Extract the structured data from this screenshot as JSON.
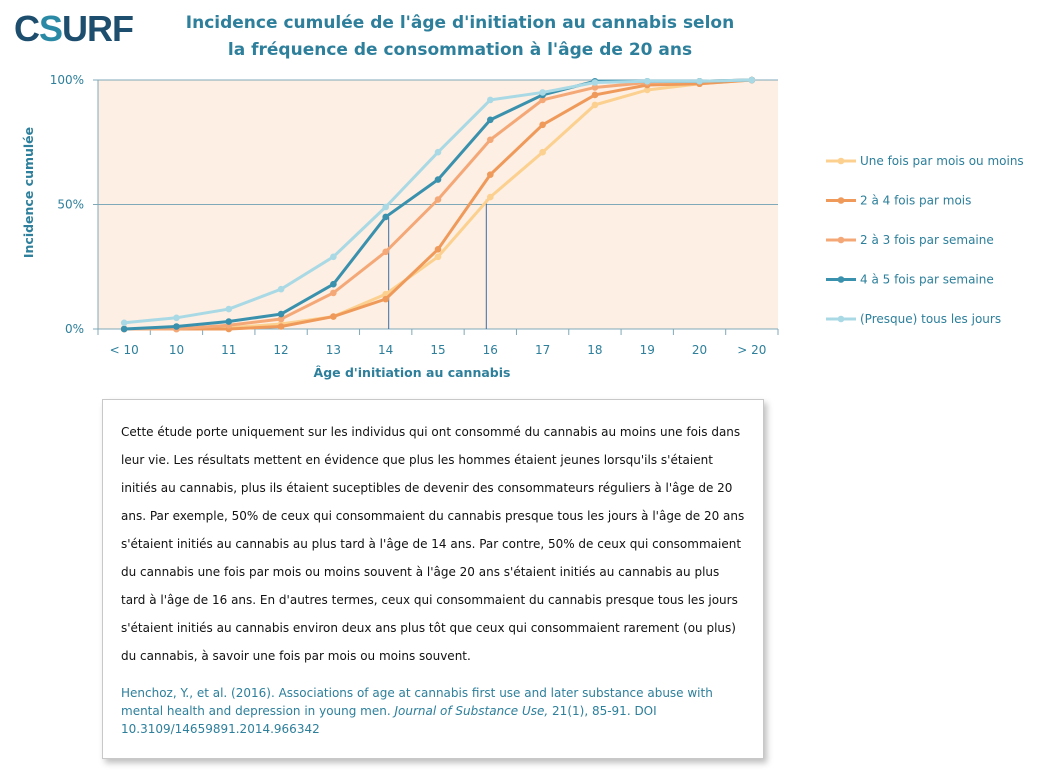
{
  "logo": {
    "part1": "C",
    "part2": "S",
    "part3": "URF"
  },
  "title": {
    "line1": "Incidence cumulée de l'âge d'initiation au cannabis selon",
    "line2": "la fréquence de consommation à l'âge de 20 ans"
  },
  "colors": {
    "plot_bg": "#fdefe3",
    "axis": "#7fa8b8",
    "text": "#2d7f9b"
  },
  "chart_data": {
    "type": "line",
    "categories": [
      "< 10",
      "10",
      "11",
      "12",
      "13",
      "14",
      "15",
      "16",
      "17",
      "18",
      "19",
      "20",
      "> 20"
    ],
    "ylim": [
      0,
      100
    ],
    "yticks": [
      "0%",
      "50%",
      "100%"
    ],
    "xlabel": "Âge d'initiation au cannabis",
    "ylabel": "Incidence cumulée",
    "legend_position": "right",
    "grid": "horizontal at 50%",
    "reference_lines": [
      {
        "series": "4 à 5 fois par semaine",
        "x": "14",
        "y": 50
      },
      {
        "series": "Une fois par mois ou moins",
        "x": "16",
        "y": 50
      }
    ],
    "series": [
      {
        "name": "Une fois par mois ou moins",
        "color": "#fcd08f",
        "values": [
          0,
          0,
          0.5,
          2,
          5,
          14,
          29,
          53,
          71,
          90,
          96,
          98.5,
          100
        ]
      },
      {
        "name": "2 à 4 fois par mois",
        "color": "#ef9a5a",
        "values": [
          0,
          0,
          0,
          1,
          5,
          12,
          32,
          62,
          82,
          94,
          98,
          98.5,
          100
        ]
      },
      {
        "name": "2 à 3 fois par semaine",
        "color": "#f5a877",
        "values": [
          0,
          0,
          1.5,
          4,
          14.5,
          31,
          52,
          76,
          92,
          97,
          99,
          99.5,
          100
        ]
      },
      {
        "name": "4 à 5 fois par semaine",
        "color": "#3a91ad",
        "values": [
          0,
          1,
          3,
          6,
          18,
          45,
          60,
          84,
          94,
          99.5,
          99.5,
          99.5,
          100
        ]
      },
      {
        "name": "(Presque) tous les jours",
        "color": "#a9d9e5",
        "values": [
          2.5,
          4.5,
          8,
          16,
          29,
          49,
          71,
          92,
          95,
          99,
          99.5,
          99.5,
          100
        ]
      }
    ]
  },
  "description": {
    "text": "Cette étude porte uniquement sur les individus qui ont consommé du cannabis au moins une fois dans leur vie. Les résultats mettent en évidence que plus les hommes étaient jeunes lorsqu'ils s'étaient initiés au cannabis, plus ils étaient suceptibles de devenir des consommateurs réguliers à l'âge de 20 ans. Par exemple, 50% de ceux qui consommaient du cannabis presque tous les jours à l'âge de 20 ans s'étaient initiés au cannabis au plus tard à l'âge de 14 ans. Par contre, 50% de ceux qui consommaient du cannabis une fois par mois ou moins souvent à l'âge 20 ans s'étaient initiés au cannabis au plus tard à l'âge de 16 ans. En d'autres termes, ceux qui consommaient du cannabis presque tous les jours s'étaient initiés au cannabis environ deux ans plus tôt que ceux qui consommaient rarement (ou plus) du cannabis, à savoir une fois par mois ou moins souvent.",
    "citation_authors": "Henchoz, Y., et al. (2016). Associations of age at cannabis first use and later substance abuse with mental health and depression in young men.",
    "citation_journal": "Journal of Substance Use,",
    "citation_rest": "21(1), 85-91. DOI 10.3109/14659891.2014.966342"
  }
}
